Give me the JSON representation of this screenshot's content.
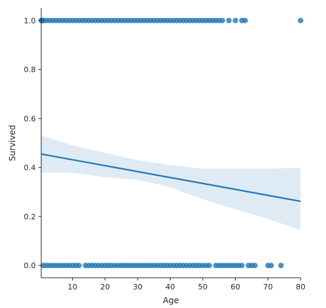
{
  "chart_data": {
    "type": "scatter",
    "title": "",
    "xlabel": "Age",
    "ylabel": "Survived",
    "xlim": [
      0.42,
      80
    ],
    "ylim": [
      -0.05,
      1.05
    ],
    "x_ticks": [
      10,
      20,
      30,
      40,
      50,
      60,
      70,
      80
    ],
    "y_ticks": [
      0.0,
      0.2,
      0.4,
      0.6,
      0.8,
      1.0
    ],
    "x_tick_labels": [
      "10",
      "20",
      "30",
      "40",
      "50",
      "60",
      "70",
      "80"
    ],
    "y_tick_labels": [
      "0.0",
      "0.2",
      "0.4",
      "0.6",
      "0.8",
      "1.0"
    ],
    "grid": false,
    "colors": {
      "points": "#1f77b4",
      "line": "#1f77b4",
      "band": "#1f77b4"
    },
    "points_survived_1": [
      0.42,
      0.67,
      0.75,
      0.83,
      0.92,
      1,
      2,
      3,
      4,
      5,
      6,
      7,
      8,
      9,
      10,
      11,
      12,
      13,
      14,
      15,
      16,
      17,
      18,
      19,
      20,
      21,
      22,
      23,
      24,
      25,
      26,
      27,
      28,
      29,
      30,
      31,
      32,
      33,
      34,
      35,
      36,
      37,
      38,
      39,
      40,
      41,
      42,
      43,
      44,
      45,
      46,
      47,
      48,
      49,
      50,
      51,
      52,
      53,
      54,
      55,
      56,
      58,
      60,
      62,
      63,
      80
    ],
    "points_survived_0": [
      1,
      2,
      3,
      4,
      5,
      6,
      7,
      8,
      9,
      10,
      11,
      12,
      14,
      15,
      16,
      17,
      18,
      19,
      20,
      21,
      22,
      23,
      24,
      25,
      26,
      27,
      28,
      29,
      30,
      31,
      32,
      33,
      34,
      35,
      36,
      37,
      38,
      39,
      40,
      41,
      42,
      43,
      44,
      45,
      46,
      47,
      48,
      49,
      50,
      51,
      52,
      54,
      55,
      56,
      57,
      58,
      59,
      60,
      61,
      62,
      64,
      65,
      66,
      70,
      71,
      74
    ],
    "regression_line": {
      "x": [
        0.42,
        80
      ],
      "y": [
        0.455,
        0.262
      ]
    },
    "confidence_band": {
      "x": [
        0.42,
        10,
        20,
        30,
        40,
        50,
        60,
        70,
        80
      ],
      "upper": [
        0.53,
        0.49,
        0.46,
        0.43,
        0.41,
        0.395,
        0.395,
        0.395,
        0.4
      ],
      "lower": [
        0.38,
        0.378,
        0.36,
        0.35,
        0.32,
        0.27,
        0.23,
        0.19,
        0.145
      ]
    }
  }
}
